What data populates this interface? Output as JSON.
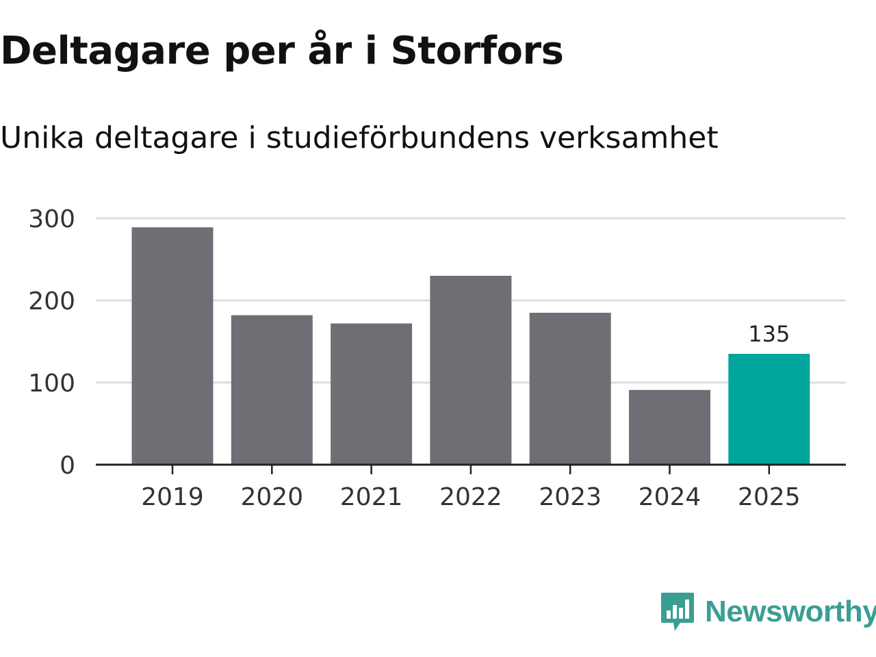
{
  "header": {
    "title": "Deltagare per år i Storfors",
    "subtitle": "Unika deltagare i studieförbundens verksamhet"
  },
  "chart_data": {
    "type": "bar",
    "title": "Deltagare per år i Storfors",
    "subtitle": "Unika deltagare i studieförbundens verksamhet",
    "xlabel": "",
    "ylabel": "",
    "categories": [
      "2019",
      "2020",
      "2021",
      "2022",
      "2023",
      "2024",
      "2025"
    ],
    "values": [
      289,
      182,
      172,
      230,
      185,
      91,
      135
    ],
    "ylim": [
      0,
      300
    ],
    "yticks": [
      0,
      100,
      200,
      300
    ],
    "grid": true,
    "highlight_index": 6,
    "highlight_label": "135",
    "colors": {
      "default": "#6f6e74",
      "highlight": "#00a59b",
      "grid": "#dddddd",
      "axis": "#222222"
    }
  },
  "brand": {
    "name": "Newsworthy",
    "icon": "newsworthy-logo-icon",
    "color": "#3a9e93"
  }
}
